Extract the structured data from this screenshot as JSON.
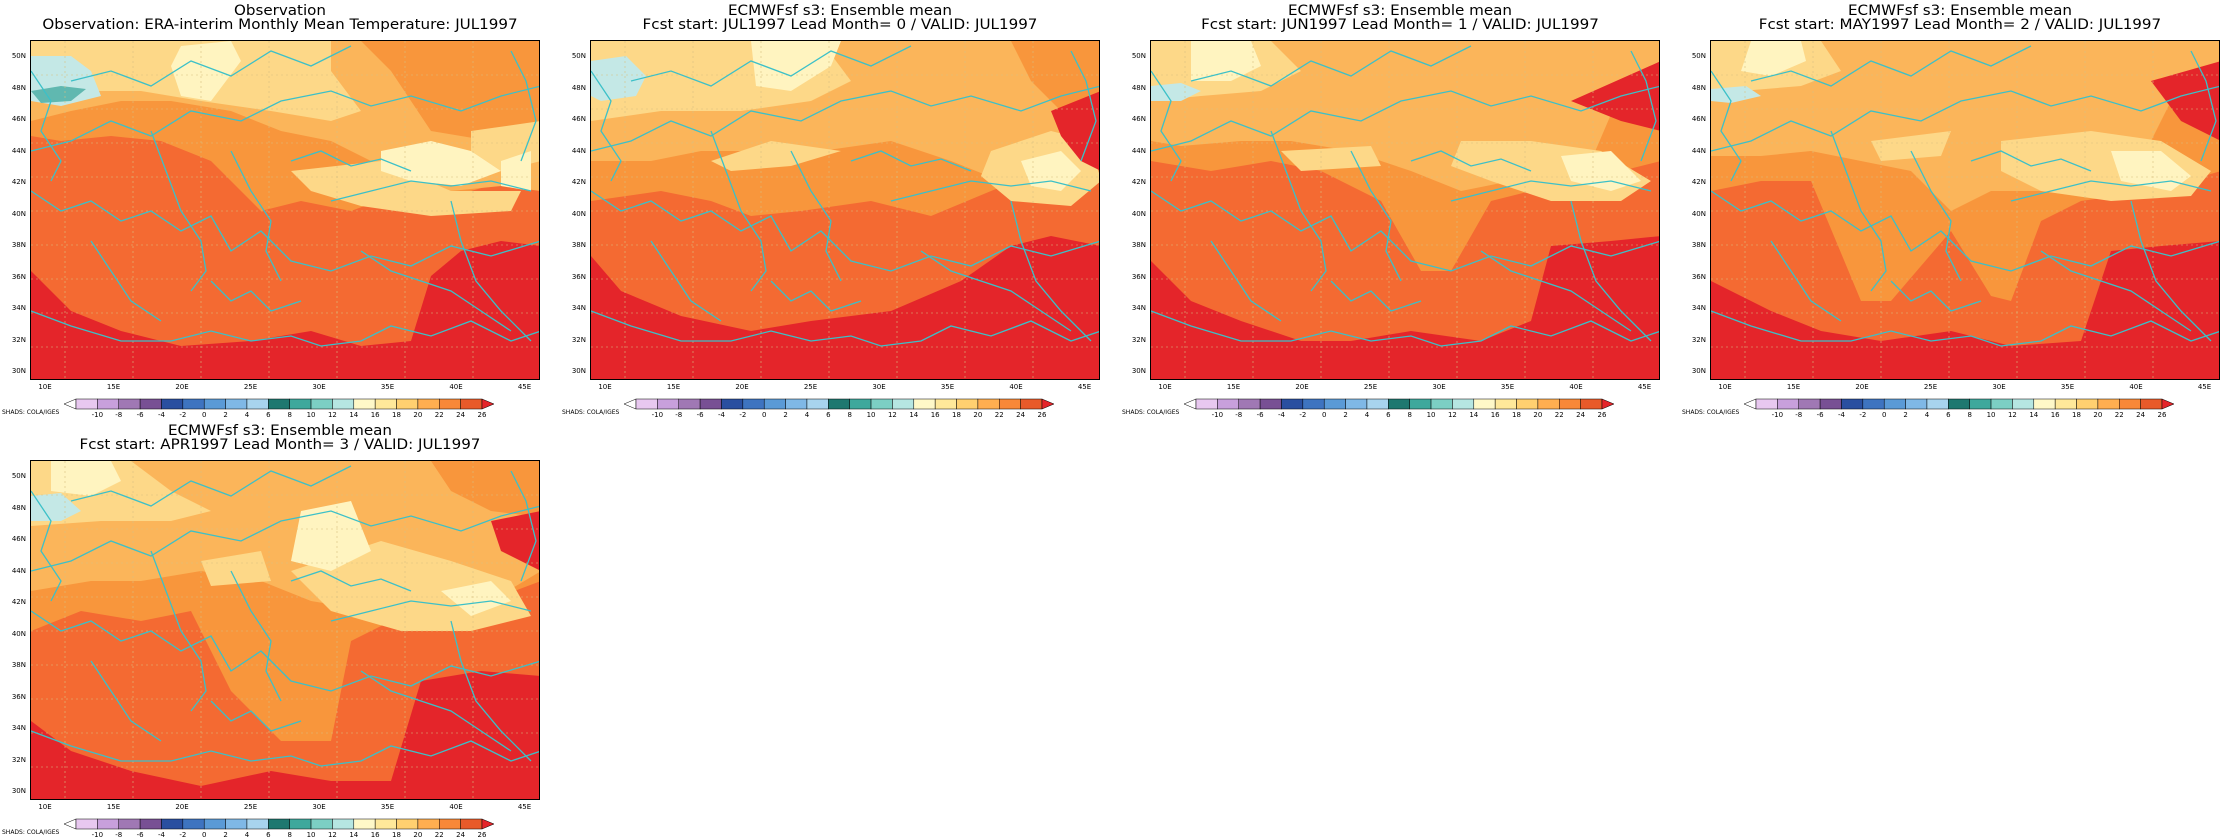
{
  "panels": [
    {
      "title1": "Observation",
      "title2": "Observation: ERA-interim Monthly Mean Temperature: JUL1997",
      "variant": 0
    },
    {
      "title1": "ECMWFsf s3: Ensemble mean",
      "title2": "Fcst start: JUL1997  Lead Month= 0 / VALID: JUL1997",
      "variant": 1
    },
    {
      "title1": "ECMWFsf s3: Ensemble mean",
      "title2": "Fcst start: JUN1997  Lead Month= 1 / VALID: JUL1997",
      "variant": 2
    },
    {
      "title1": "ECMWFsf s3: Ensemble mean",
      "title2": "Fcst start: MAY1997  Lead Month= 2 / VALID: JUL1997",
      "variant": 3
    },
    {
      "title1": "ECMWFsf s3: Ensemble mean",
      "title2": "Fcst start: APR1997  Lead Month= 3 / VALID: JUL1997",
      "variant": 4
    }
  ],
  "lat_labels": [
    "50N",
    "48N",
    "46N",
    "44N",
    "42N",
    "40N",
    "38N",
    "36N",
    "34N",
    "32N",
    "30N"
  ],
  "lon_labels": [
    "10E",
    "15E",
    "20E",
    "25E",
    "30E",
    "35E",
    "40E",
    "45E"
  ],
  "colorbar": {
    "labels": [
      "-10",
      "-8",
      "-6",
      "-4",
      "-2",
      "0",
      "2",
      "4",
      "6",
      "8",
      "10",
      "12",
      "14",
      "16",
      "18",
      "20",
      "22",
      "24",
      "26"
    ],
    "colors": [
      "#ffffff",
      "#e8c8f0",
      "#c8a0dc",
      "#a078b4",
      "#785094",
      "#2a4fa0",
      "#3e74c0",
      "#5a9ad6",
      "#7fb8e6",
      "#a8d4ee",
      "#1e7870",
      "#3ea89c",
      "#7ccfc4",
      "#b6e6e2",
      "#fff8c8",
      "#ffe89a",
      "#ffd070",
      "#ffae50",
      "#f88838",
      "#e85a2a",
      "#e4252a"
    ],
    "shades_label": "SHADS: COLA/IGES"
  },
  "colors": {
    "coast": "#3cc0c8",
    "t26": "#e4252a",
    "t24": "#f46a32",
    "t22": "#f8963c",
    "t20": "#fbb55a",
    "t18": "#fdd888",
    "t16": "#fff4c0",
    "t12": "#c4e8e6",
    "t10": "#60b8b0"
  }
}
